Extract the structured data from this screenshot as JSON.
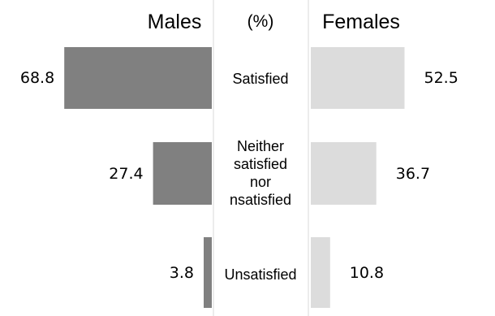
{
  "chart_data": {
    "type": "bar",
    "orientation": "horizontal",
    "layout": "butterfly",
    "unit": "(%)",
    "categories": [
      "Satisfied",
      "Neither satisfied nor nsatisfied",
      "Unsatisfied"
    ],
    "category_lines": [
      [
        "Satisfied"
      ],
      [
        "Neither",
        "satisfied",
        "nor",
        "nsatisfied"
      ],
      [
        "Unsatisfied"
      ]
    ],
    "series": [
      {
        "name": "Males",
        "values": [
          68.8,
          27.4,
          3.8
        ],
        "color": "#808080",
        "side": "left"
      },
      {
        "name": "Females",
        "values": [
          52.5,
          36.7,
          10.8
        ],
        "color": "#dcdcdc",
        "side": "right"
      }
    ],
    "value_labels": {
      "Males": [
        "68.8",
        "27.4",
        "3.8"
      ],
      "Females": [
        "52.5",
        "36.7",
        "10.8"
      ]
    },
    "xlim": [
      0,
      70
    ],
    "grid": false,
    "legend": "none"
  }
}
